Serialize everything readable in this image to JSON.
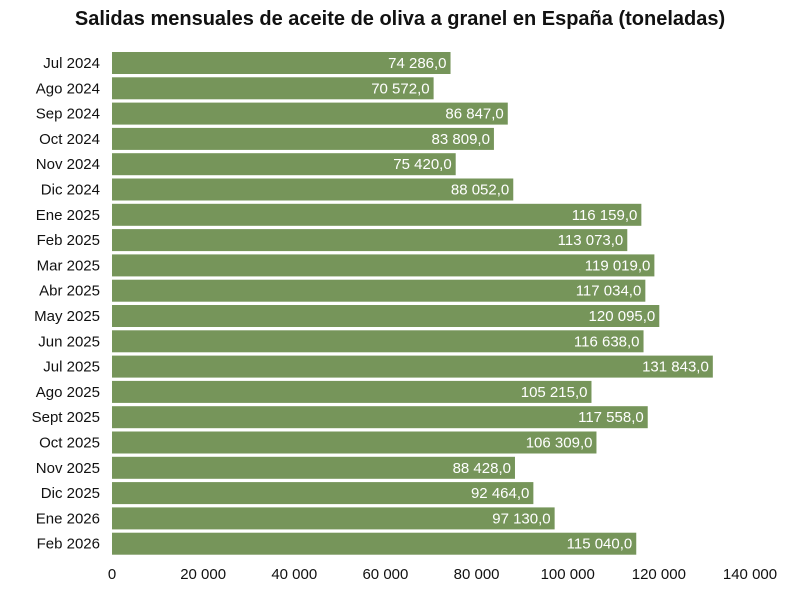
{
  "chart_data": {
    "type": "bar",
    "orientation": "horizontal",
    "title": "Salidas mensuales de aceite de oliva a granel en España (toneladas)",
    "xlabel": "",
    "ylabel": "",
    "categories": [
      "Jul 2024",
      "Ago 2024",
      "Sep 2024",
      "Oct 2024",
      "Nov 2024",
      "Dic 2024",
      "Ene 2025",
      "Feb 2025",
      "Mar 2025",
      "Abr 2025",
      "May 2025",
      "Jun 2025",
      "Jul 2025",
      "Ago 2025",
      "Sept 2025",
      "Oct 2025",
      "Nov 2025",
      "Dic 2025",
      "Ene 2026",
      "Feb 2026"
    ],
    "values": [
      74286.0,
      70572.0,
      86847.0,
      83809.0,
      75420.0,
      88052.0,
      116159.0,
      113073.0,
      119019.0,
      117034.0,
      120095.0,
      116638.0,
      131843.0,
      105215.0,
      117558.0,
      106309.0,
      88428.0,
      92464.0,
      97130.0,
      115040.0
    ],
    "value_labels": [
      "74 286,0",
      "70 572,0",
      "86 847,0",
      "83 809,0",
      "75 420,0",
      "88 052,0",
      "116 159,0",
      "113 073,0",
      "119 019,0",
      "117 034,0",
      "120 095,0",
      "116 638,0",
      "131 843,0",
      "105 215,0",
      "117 558,0",
      "106 309,0",
      "88 428,0",
      "92 464,0",
      "97 130,0",
      "115 040,0"
    ],
    "xlim": [
      0,
      140000
    ],
    "x_ticks": [
      0,
      20000,
      40000,
      60000,
      80000,
      100000,
      120000,
      140000
    ],
    "x_tick_labels": [
      "0",
      "20 000",
      "40 000",
      "60 000",
      "80 000",
      "100 000",
      "120 000",
      "140 000"
    ],
    "grid": false,
    "legend": "none",
    "bar_color": "#76955a",
    "label_color": "#ffffff"
  }
}
